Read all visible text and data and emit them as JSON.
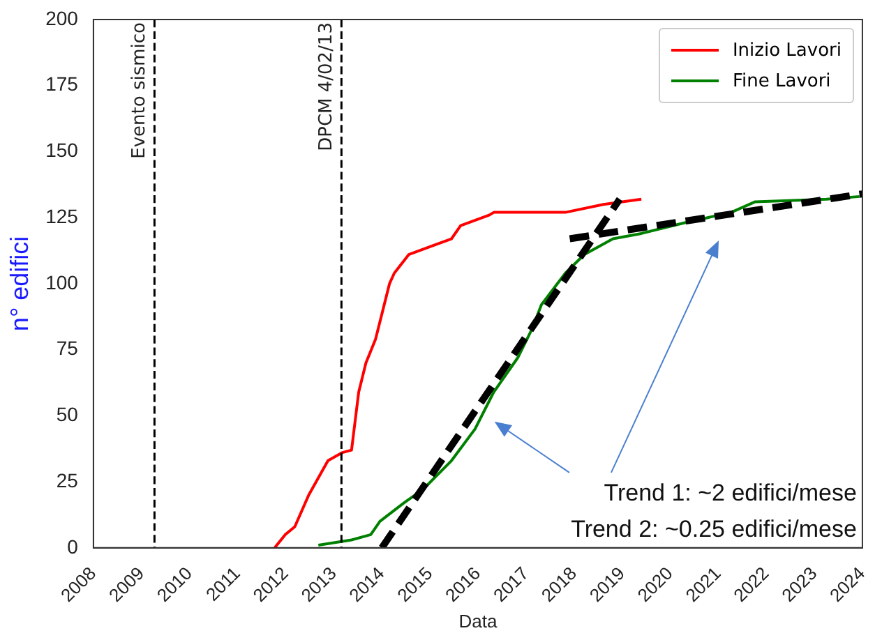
{
  "chart_data": {
    "type": "line",
    "xlabel": "Data",
    "ylabel": "n° edifici",
    "xlim": [
      2008,
      2024
    ],
    "xticks": [
      2008,
      2009,
      2010,
      2011,
      2012,
      2013,
      2014,
      2015,
      2016,
      2017,
      2018,
      2019,
      2020,
      2021,
      2022,
      2023,
      2024
    ],
    "ylim": [
      0,
      200
    ],
    "yticks": [
      0,
      25,
      50,
      75,
      100,
      125,
      150,
      175,
      200
    ],
    "grid": false,
    "legend": "top right",
    "marker": "none",
    "series": [
      {
        "name": "Inizio Lavori",
        "color": "#ff0000",
        "x": [
          2011.77,
          2011.99,
          2012.19,
          2012.48,
          2012.88,
          2013.17,
          2013.37,
          2013.52,
          2013.67,
          2013.87,
          2014.16,
          2014.26,
          2014.56,
          2015.15,
          2015.45,
          2015.64,
          2016.24,
          2016.33,
          2017.82,
          2018.61,
          2019.4
        ],
        "values": [
          0,
          5,
          8,
          20,
          33,
          36,
          37,
          59,
          70,
          79,
          100,
          104,
          111,
          115,
          117,
          122,
          126,
          127,
          127,
          130,
          132
        ]
      },
      {
        "name": "Fine Lavori",
        "color": "#008000",
        "x": [
          2012.68,
          2013.37,
          2013.77,
          2013.96,
          2014.46,
          2014.85,
          2015.45,
          2015.94,
          2016.33,
          2016.83,
          2017.13,
          2017.32,
          2017.82,
          2018.21,
          2018.81,
          2019.4,
          2020.29,
          2021.27,
          2021.77,
          2023.25,
          2023.94
        ],
        "values": [
          1,
          3,
          5,
          10,
          17,
          22,
          33,
          45,
          59,
          72,
          83,
          92,
          104,
          111,
          117,
          119,
          123,
          127,
          131,
          132,
          133
        ]
      },
      {
        "type": "line",
        "color": "#000000",
        "line_style": "dashed",
        "x": [
          2014.0,
          2018.95
        ],
        "values": [
          0,
          132
        ]
      },
      {
        "type": "line",
        "color": "#000000",
        "line_style": "dashed",
        "x": [
          2017.91,
          2024
        ],
        "values": [
          117,
          134
        ]
      }
    ],
    "ref_lines": [
      {
        "axis": "x",
        "value": 2009.27,
        "label": "Evento sismico",
        "color": "#000000",
        "line_style": "dashed"
      },
      {
        "axis": "x",
        "value": 2013.16,
        "label": "DPCM 4/02/13",
        "color": "#000000",
        "line_style": "dashed"
      }
    ],
    "annotations": [
      "Trend 1: ~2 edifici/mese",
      "Trend 2: ~0.25 edifici/mese"
    ]
  }
}
